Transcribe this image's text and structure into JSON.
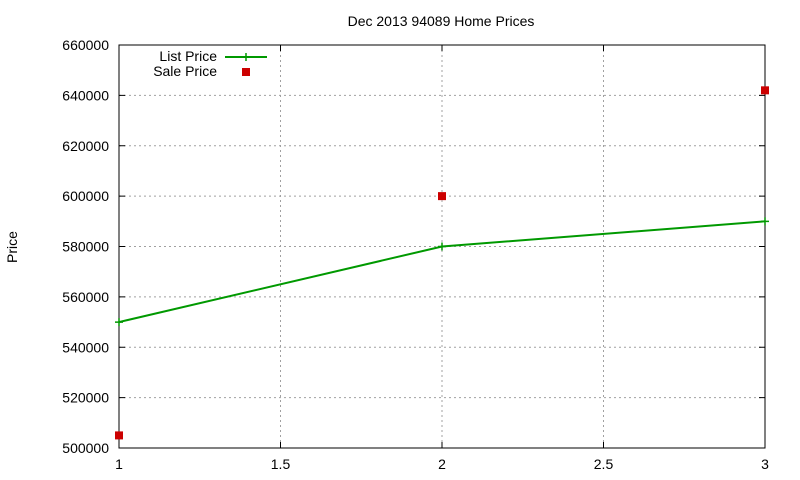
{
  "chart_data": {
    "type": "line",
    "title": "Dec 2013 94089 Home Prices",
    "xlabel": "",
    "ylabel": "Price",
    "xlim": [
      1,
      3
    ],
    "ylim": [
      500000,
      660000
    ],
    "xticks": [
      "1",
      "1.5",
      "2",
      "2.5",
      "3"
    ],
    "yticks": [
      "500000",
      "520000",
      "540000",
      "560000",
      "580000",
      "600000",
      "620000",
      "640000",
      "660000"
    ],
    "grid": true,
    "legend_position": "top-left",
    "series": [
      {
        "name": "List Price",
        "style": "line+cross",
        "color": "#009900",
        "x": [
          1,
          2,
          3
        ],
        "values": [
          550000,
          580000,
          590000
        ]
      },
      {
        "name": "Sale Price",
        "style": "square-points",
        "color": "#cc0000",
        "x": [
          1,
          2,
          3
        ],
        "values": [
          505000,
          600000,
          642000
        ]
      }
    ]
  }
}
